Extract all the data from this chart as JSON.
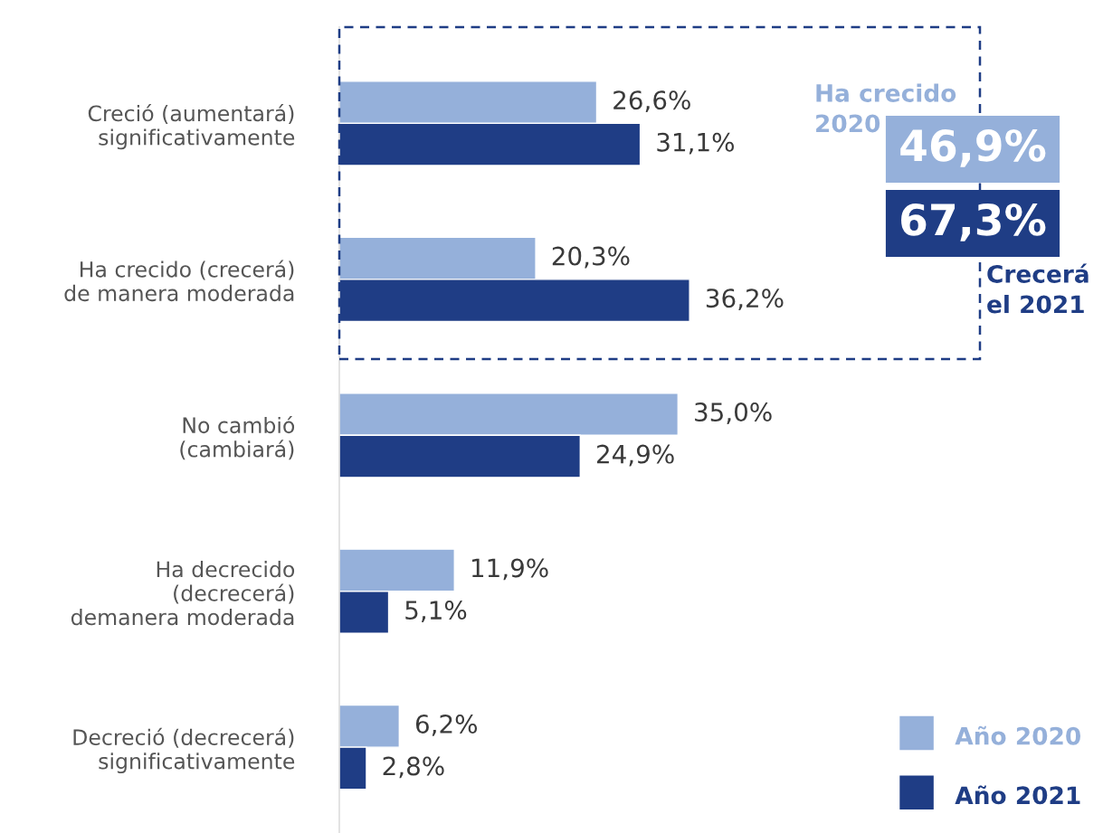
{
  "chart_data": {
    "type": "bar",
    "orientation": "horizontal",
    "categories": [
      "Creció (aumentará)\nsignificativamente",
      "Ha crecido (crecerá)\nde manera moderada",
      "No cambió\n(cambiará)",
      "Ha decrecido\n(decrecerá)\ndemanera moderada",
      "Decreció (decrecerá)\nsignificativamente"
    ],
    "series": [
      {
        "name": "Año 2020",
        "color": "#95b0da",
        "values": [
          26.6,
          20.3,
          35.0,
          11.9,
          6.2
        ],
        "value_labels": [
          "26,6%",
          "20,3%",
          "35,0%",
          "11,9%",
          "6,2%"
        ]
      },
      {
        "name": "Año 2021",
        "color": "#1f3d85",
        "values": [
          31.1,
          36.2,
          24.9,
          5.1,
          2.8
        ],
        "value_labels": [
          "31,1%",
          "36,2%",
          "24,9%",
          "5,1%",
          "2,8%"
        ]
      }
    ],
    "annotations": [
      "Ha crecido\n2020",
      "46,9%",
      "67,3%",
      "Crecerá\nel 2021"
    ],
    "legend": "bottom right"
  }
}
